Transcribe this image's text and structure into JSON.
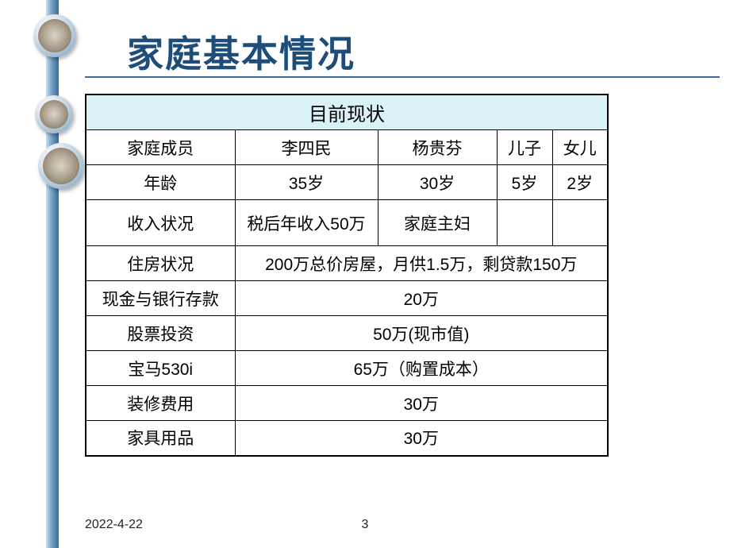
{
  "title": "家庭基本情况",
  "colors": {
    "title_color": "#1d4d78",
    "underline_color": "#3a6b96",
    "header_bg": "#d9f2f7",
    "border_color": "#000000",
    "leftbar_gradient_start": "#cdddea",
    "leftbar_gradient_end": "#3a6b96"
  },
  "typography": {
    "title_fontsize": 46,
    "cell_fontsize": 21,
    "header_fontsize": 24,
    "footer_fontsize": 16
  },
  "table": {
    "header": "目前现状",
    "rows": [
      {
        "label": "家庭成员",
        "c1": "李四民",
        "c2": "杨贵芬",
        "c3": "儿子",
        "c4": "女儿"
      },
      {
        "label": "年龄",
        "c1": "35岁",
        "c2": "30岁",
        "c3": "5岁",
        "c4": "2岁"
      },
      {
        "label": "收入状况",
        "c1": "税后年收入50万",
        "c2": "家庭主妇",
        "c3": "",
        "c4": ""
      },
      {
        "label": "住房状况",
        "merged": "200万总价房屋，月供1.5万，剩贷款150万"
      },
      {
        "label": "现金与银行存款",
        "merged": "20万"
      },
      {
        "label": "股票投资",
        "merged": "50万(现市值)"
      },
      {
        "label": "宝马530i",
        "merged": "65万（购置成本）"
      },
      {
        "label": "装修费用",
        "merged": "30万"
      },
      {
        "label": "家具用品",
        "merged": "30万"
      }
    ]
  },
  "footer": {
    "date": "2022-4-22",
    "page": "3"
  }
}
